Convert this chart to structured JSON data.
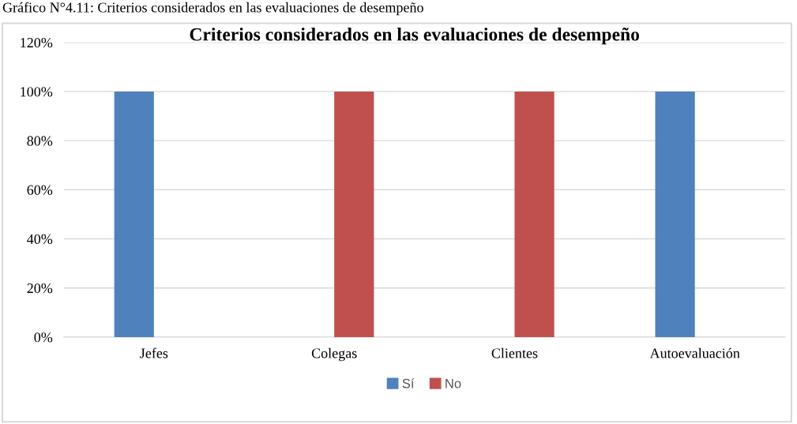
{
  "chart_data": {
    "type": "bar",
    "title": "Criterios considerados en las evaluaciones de desempeño",
    "annotations": [
      "Gráfico N°4.11: Criterios considerados en las evaluaciones de desempeño"
    ],
    "categories": [
      "Jefes",
      "Colegas",
      "Clientes",
      "Autoevaluación"
    ],
    "series": [
      {
        "name": "Sí",
        "color": "#4f81bd",
        "values": [
          100,
          0,
          0,
          100
        ]
      },
      {
        "name": "No",
        "color": "#c0504d",
        "values": [
          0,
          100,
          100,
          0
        ]
      }
    ],
    "ylim": [
      0,
      120
    ],
    "yticks": [
      {
        "value": 0,
        "label": "0%"
      },
      {
        "value": 20,
        "label": "20%"
      },
      {
        "value": 40,
        "label": "40%"
      },
      {
        "value": 60,
        "label": "60%"
      },
      {
        "value": 80,
        "label": "80%"
      },
      {
        "value": 100,
        "label": "100%"
      },
      {
        "value": 120,
        "label": "120%"
      }
    ],
    "grid": "y",
    "legend": "bottom"
  }
}
